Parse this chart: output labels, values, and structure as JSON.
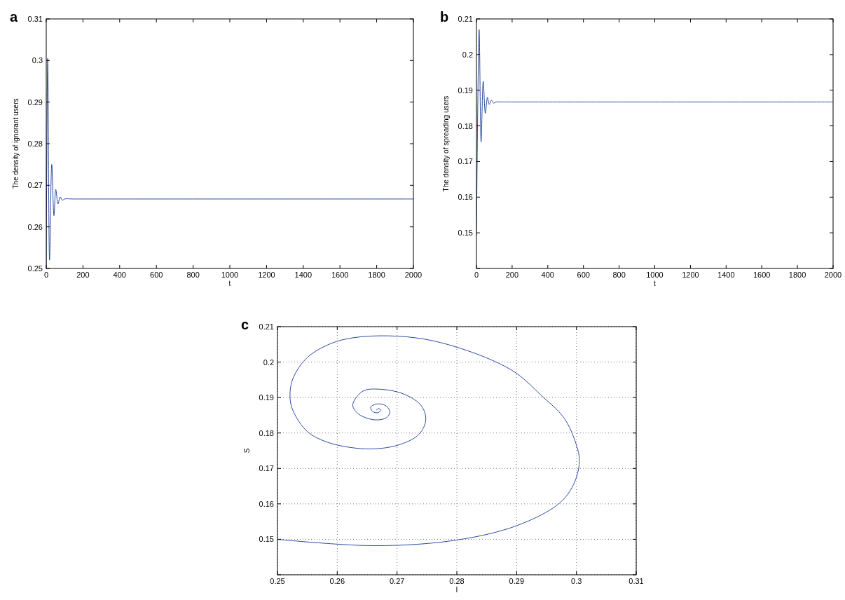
{
  "chart_data": [
    {
      "type": "line",
      "annotations": [
        "a"
      ],
      "xlabel": "t",
      "ylabel": "The density of ignorant users",
      "xlim": [
        0,
        2000
      ],
      "xticks": [
        0,
        200,
        400,
        600,
        800,
        1000,
        1200,
        1400,
        1600,
        1800,
        2000
      ],
      "ylim": [
        0.25,
        0.31
      ],
      "yticks": [
        0.25,
        0.26,
        0.27,
        0.28,
        0.29,
        0.3,
        0.31
      ],
      "grid": false,
      "series": [
        {
          "color": "#2b4aa0",
          "x": [
            0,
            8,
            18,
            30,
            42,
            52,
            64,
            76,
            88,
            100,
            150,
            500,
            1000,
            2000
          ],
          "values": [
            0.25,
            0.3005,
            0.252,
            0.275,
            0.2627,
            0.269,
            0.2655,
            0.2672,
            0.2664,
            0.2667,
            0.2667,
            0.2667,
            0.2667,
            0.2667
          ]
        }
      ]
    },
    {
      "type": "line",
      "annotations": [
        "b"
      ],
      "xlabel": "t",
      "ylabel": "The density of spreading users",
      "xlim": [
        0,
        2000
      ],
      "xticks": [
        0,
        200,
        400,
        600,
        800,
        1000,
        1200,
        1400,
        1600,
        1800,
        2000
      ],
      "ylim": [
        0.14,
        0.21
      ],
      "yticks": [
        {
          "value": 0.14,
          "label": null
        },
        0.15,
        0.16,
        0.17,
        0.18,
        0.19,
        0.2,
        0.21
      ],
      "grid": false,
      "series": [
        {
          "color": "#2b4aa0",
          "x": [
            0,
            15,
            26,
            38,
            50,
            62,
            72,
            84,
            96,
            110,
            150,
            500,
            1000,
            2000
          ],
          "values": [
            0.149,
            0.207,
            0.1755,
            0.1925,
            0.1835,
            0.188,
            0.186,
            0.1872,
            0.1864,
            0.1867,
            0.1867,
            0.1867,
            0.1867,
            0.1867
          ]
        }
      ]
    },
    {
      "type": "line",
      "annotations": [
        "c"
      ],
      "xlabel": "I",
      "ylabel": "S",
      "xlim": [
        0.25,
        0.31
      ],
      "xticks": [
        0.25,
        0.26,
        0.27,
        0.28,
        0.29,
        0.3,
        0.31
      ],
      "ylim": [
        0.14,
        0.21
      ],
      "yticks": [
        {
          "value": 0.14,
          "label": null
        },
        0.15,
        0.16,
        0.17,
        0.18,
        0.19,
        0.2,
        0.21
      ],
      "grid": true,
      "line_style": "solid",
      "series": [
        {
          "color": "#2b4aa0",
          "x": [
            0.25,
            0.2663,
            0.28,
            0.2901,
            0.2971,
            0.2995,
            0.3005,
            0.2999,
            0.2979,
            0.294,
            0.2901,
            0.2862,
            0.28,
            0.2745,
            0.2686,
            0.2628,
            0.2589,
            0.255,
            0.2526,
            0.2521,
            0.2526,
            0.255,
            0.2589,
            0.2655,
            0.2706,
            0.2737,
            0.2748,
            0.2741,
            0.2714,
            0.2675,
            0.2643,
            0.2626,
            0.2636,
            0.2663,
            0.2682,
            0.2688,
            0.2682,
            0.2667,
            0.2656,
            0.2659,
            0.2667,
            0.2673,
            0.2669,
            0.2666,
            0.2667
          ],
          "values": [
            0.15,
            0.1482,
            0.1498,
            0.1539,
            0.1601,
            0.1654,
            0.1719,
            0.1771,
            0.1843,
            0.1908,
            0.1967,
            0.2003,
            0.2042,
            0.2065,
            0.2074,
            0.2069,
            0.2052,
            0.2013,
            0.1954,
            0.1902,
            0.1863,
            0.1804,
            0.1771,
            0.1755,
            0.1768,
            0.1797,
            0.1837,
            0.1876,
            0.1908,
            0.1923,
            0.1918,
            0.1879,
            0.1853,
            0.1837,
            0.1843,
            0.1859,
            0.1876,
            0.1882,
            0.1873,
            0.1861,
            0.1857,
            0.1864,
            0.1869,
            0.1865,
            0.1867
          ]
        }
      ]
    }
  ]
}
